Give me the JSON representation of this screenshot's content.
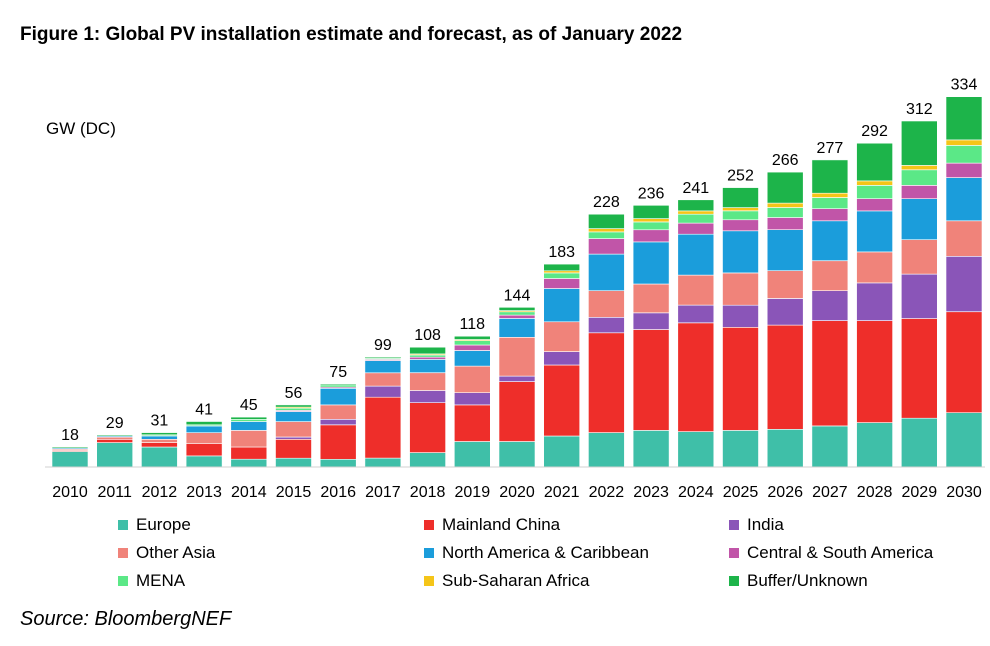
{
  "chart_data": {
    "type": "bar",
    "stacked": true,
    "title": "Figure 1:  Global PV installation estimate and forecast, as of January 2022",
    "ylabel": "GW (DC)",
    "xlabel": "",
    "ylim": [
      0,
      340
    ],
    "grid": false,
    "legend_position": "bottom",
    "categories": [
      "2010",
      "2011",
      "2012",
      "2013",
      "2014",
      "2015",
      "2016",
      "2017",
      "2018",
      "2019",
      "2020",
      "2021",
      "2022",
      "2023",
      "2024",
      "2025",
      "2026",
      "2027",
      "2028",
      "2029",
      "2030"
    ],
    "totals": [
      18,
      29,
      31,
      41,
      45,
      56,
      75,
      99,
      108,
      118,
      144,
      183,
      228,
      236,
      241,
      252,
      266,
      277,
      292,
      312,
      334
    ],
    "series": [
      {
        "name": "Europe",
        "color": "#3fbfa8",
        "values": [
          14,
          22,
          18,
          10,
          7,
          8,
          7,
          8,
          13,
          23,
          23,
          28,
          31,
          33,
          32,
          33,
          34,
          37,
          40,
          44,
          49
        ]
      },
      {
        "name": "Mainland China",
        "color": "#ee2e2a",
        "values": [
          1,
          3,
          4,
          11,
          11,
          17,
          31,
          55,
          45,
          33,
          54,
          64,
          90,
          91,
          98,
          93,
          94,
          95,
          92,
          90,
          91
        ]
      },
      {
        "name": "India",
        "color": "#8a55b8",
        "values": [
          0,
          0,
          0,
          0,
          0,
          2,
          5,
          10,
          11,
          11,
          5,
          12,
          14,
          15,
          16,
          20,
          24,
          27,
          34,
          40,
          50
        ]
      },
      {
        "name": "Other Asia",
        "color": "#f0837a",
        "values": [
          1,
          2,
          3,
          10,
          15,
          14,
          13,
          12,
          16,
          24,
          35,
          27,
          24,
          26,
          27,
          29,
          25,
          27,
          28,
          31,
          32
        ]
      },
      {
        "name": "North America & Caribbean",
        "color": "#1b9ddb",
        "values": [
          1,
          1,
          3,
          6,
          8,
          9,
          15,
          11,
          12,
          14,
          17,
          30,
          33,
          38,
          37,
          38,
          37,
          36,
          37,
          37,
          39
        ]
      },
      {
        "name": "Central & South America",
        "color": "#c155a8",
        "values": [
          0,
          0,
          0,
          0,
          0,
          1,
          1,
          1,
          2,
          5,
          3,
          9,
          14,
          11,
          10,
          10,
          11,
          11,
          11,
          12,
          13
        ]
      },
      {
        "name": "MENA",
        "color": "#5be887",
        "values": [
          0,
          0,
          1,
          1,
          2,
          2,
          2,
          1,
          2,
          4,
          3,
          5,
          6,
          7,
          8,
          8,
          9,
          10,
          12,
          14,
          16
        ]
      },
      {
        "name": "Sub-Saharan Africa",
        "color": "#f5c518",
        "values": [
          0,
          0,
          0,
          0,
          0,
          1,
          0,
          0,
          1,
          1,
          1,
          2,
          3,
          3,
          3,
          3,
          4,
          4,
          4,
          4,
          5
        ]
      },
      {
        "name": "Buffer/Unknown",
        "color": "#1db44a",
        "values": [
          1,
          1,
          2,
          3,
          2,
          2,
          1,
          1,
          6,
          3,
          3,
          6,
          13,
          12,
          10,
          18,
          28,
          30,
          34,
          40,
          39
        ]
      }
    ]
  },
  "source": "Source: BloombergNEF"
}
